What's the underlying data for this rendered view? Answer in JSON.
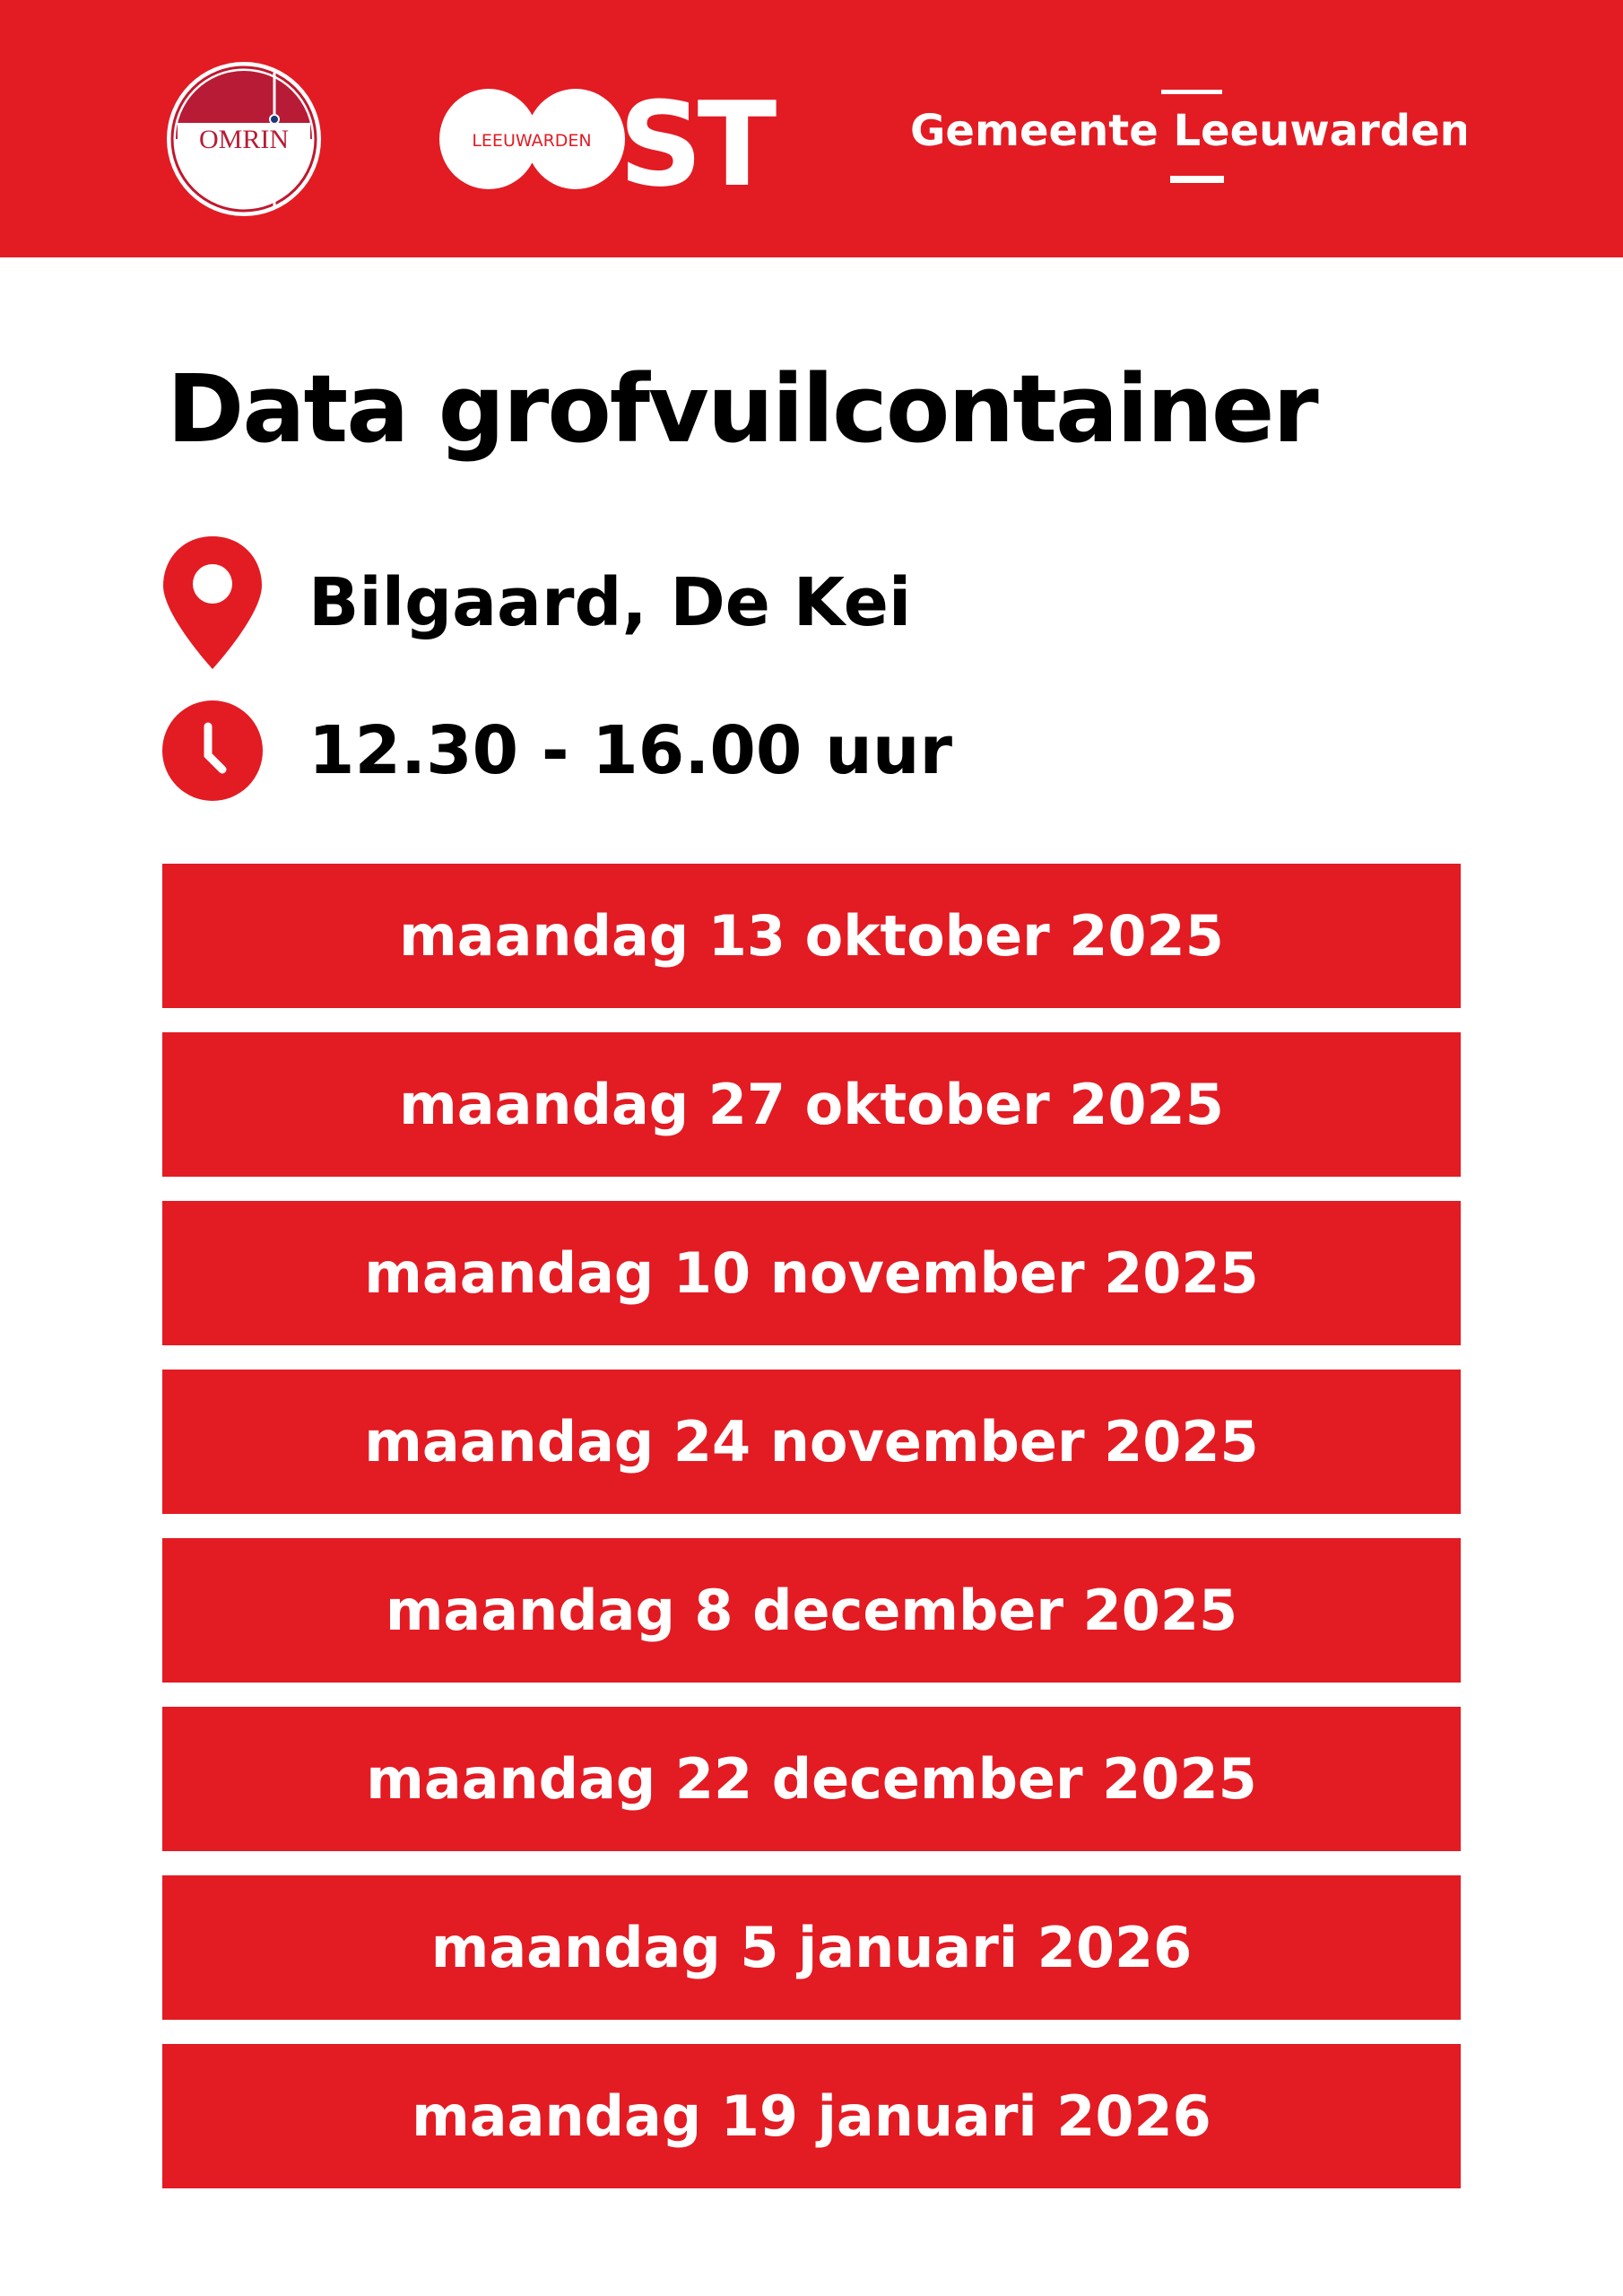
{
  "header": {
    "logos": {
      "omrin": "OMRIN",
      "oost_small": "LEEUWARDEN",
      "oost_big": "ST",
      "gemeente": "Gemeente Leeuwarden"
    },
    "background_color": "#e31b23"
  },
  "title": "Data grofvuilcontainer",
  "location": {
    "icon": "map-pin-icon",
    "text": "Bilgaard, De Kei"
  },
  "time": {
    "icon": "clock-icon",
    "text": "12.30 - 16.00 uur"
  },
  "dates": [
    "maandag 13 oktober 2025",
    "maandag 27 oktober 2025",
    "maandag 10 november 2025",
    "maandag 24 november 2025",
    "maandag 8 december 2025",
    "maandag 22 december 2025",
    "maandag 5 januari 2026",
    "maandag 19 januari 2026"
  ]
}
